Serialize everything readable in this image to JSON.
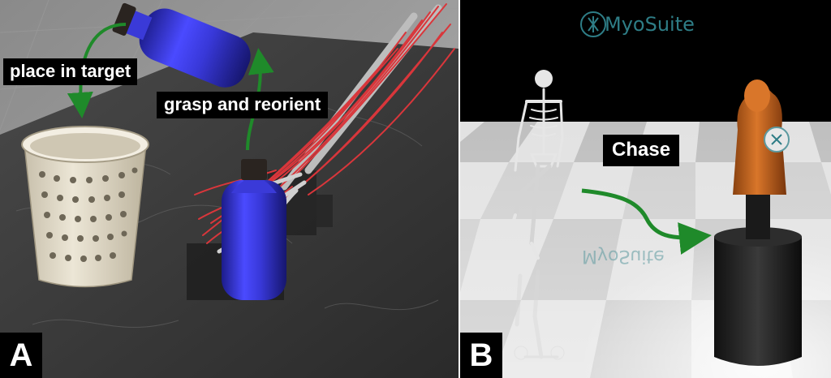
{
  "panel_a": {
    "letter": "A",
    "label_place": "place in target",
    "label_grasp": "grasp and reorient"
  },
  "panel_b": {
    "letter": "B",
    "logo_text": "MyoSuite",
    "label_chase": "Chase"
  },
  "colors": {
    "arrow": "#1f8a2a",
    "bottle": "#3b3be0",
    "muscle": "#d9363b",
    "basket": "#e6dfcf",
    "dummy": "#c6661a",
    "floor_dark": "#2b2b2b",
    "label_bg": "#000000"
  }
}
